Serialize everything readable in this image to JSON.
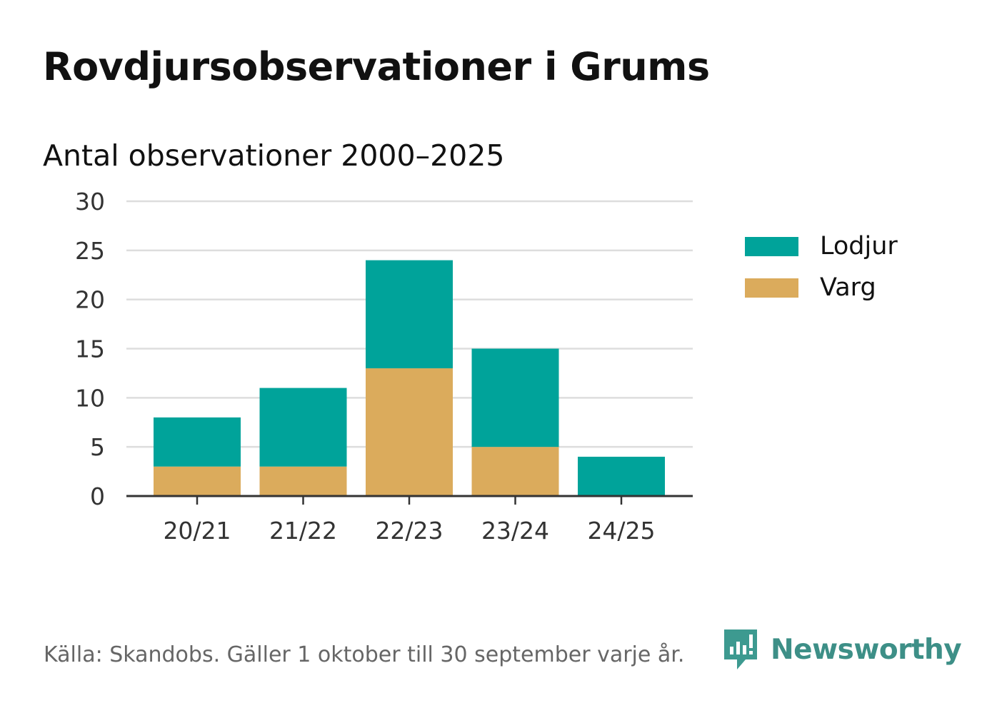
{
  "title": "Rovdjursobservationer i Grums",
  "subtitle": "Antal observationer 2000–2025",
  "source": "Källa: Skandobs. Gäller 1 oktober till 30 september varje år.",
  "brand": {
    "name": "Newsworthy",
    "icon": "newsworthy-logo-icon",
    "color": "#3d9a90"
  },
  "colors": {
    "Lodjur": "#00a39a",
    "Varg": "#dbab5c",
    "grid": "#dddddd",
    "axis": "#333333"
  },
  "chart_data": {
    "type": "bar",
    "stacked": true,
    "categories": [
      "20/21",
      "21/22",
      "22/23",
      "23/24",
      "24/25"
    ],
    "series": [
      {
        "name": "Varg",
        "values": [
          3,
          3,
          13,
          5,
          0
        ]
      },
      {
        "name": "Lodjur",
        "values": [
          5,
          8,
          11,
          10,
          4
        ]
      }
    ],
    "yticks": [
      "0",
      "5",
      "10",
      "15",
      "20",
      "25",
      "30"
    ],
    "ylim": [
      0,
      30
    ],
    "grid": true,
    "legend": "right",
    "legend_order": [
      "Lodjur",
      "Varg"
    ]
  }
}
